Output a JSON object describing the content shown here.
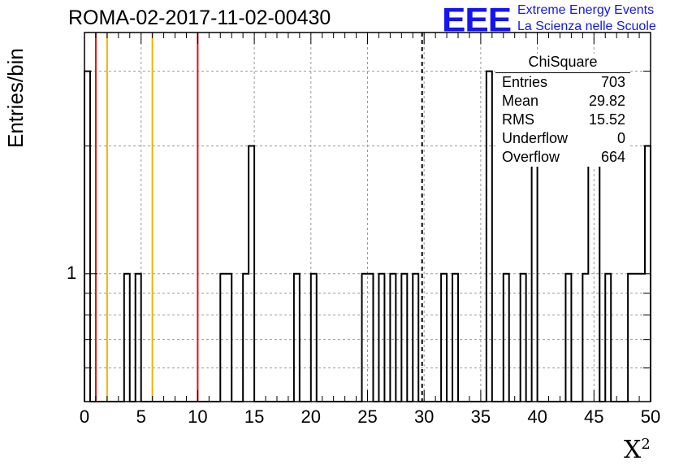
{
  "header": {
    "run_title": "ROMA-02-2017-11-02-00430",
    "logo_text": "EEE",
    "logo_line1": "Extreme Energy Events",
    "logo_line2": "La Scienza nelle Scuole"
  },
  "stats_box": {
    "title": "ChiSquare",
    "rows": [
      {
        "label": "Entries",
        "value": "703"
      },
      {
        "label": "Mean",
        "value": "29.82"
      },
      {
        "label": "RMS",
        "value": "15.52"
      },
      {
        "label": "Underflow",
        "value": "0"
      },
      {
        "label": "Overflow",
        "value": "664"
      }
    ]
  },
  "chart_data": {
    "type": "bar",
    "style": "step-histogram",
    "xlabel": "X",
    "xlabel_sup": "2",
    "ylabel": "Entries/bin",
    "xlim": [
      0,
      50
    ],
    "ylog": true,
    "ylim": [
      0.5,
      3.7
    ],
    "bin_width": 0.5,
    "bins": [
      {
        "x": 0.0,
        "y": 3
      },
      {
        "x": 3.5,
        "y": 1
      },
      {
        "x": 4.5,
        "y": 1
      },
      {
        "x": 12.0,
        "y": 1
      },
      {
        "x": 12.5,
        "y": 1
      },
      {
        "x": 14.0,
        "y": 1
      },
      {
        "x": 14.5,
        "y": 2
      },
      {
        "x": 18.5,
        "y": 1
      },
      {
        "x": 20.0,
        "y": 1
      },
      {
        "x": 24.5,
        "y": 1
      },
      {
        "x": 25.0,
        "y": 1
      },
      {
        "x": 26.0,
        "y": 1
      },
      {
        "x": 27.0,
        "y": 1
      },
      {
        "x": 28.0,
        "y": 1
      },
      {
        "x": 29.0,
        "y": 1
      },
      {
        "x": 31.5,
        "y": 1
      },
      {
        "x": 32.5,
        "y": 1
      },
      {
        "x": 35.5,
        "y": 3
      },
      {
        "x": 37.0,
        "y": 1
      },
      {
        "x": 38.5,
        "y": 1
      },
      {
        "x": 39.5,
        "y": 2
      },
      {
        "x": 42.5,
        "y": 1
      },
      {
        "x": 44.0,
        "y": 1
      },
      {
        "x": 44.5,
        "y": 2
      },
      {
        "x": 45.0,
        "y": 2
      },
      {
        "x": 46.0,
        "y": 1
      },
      {
        "x": 48.0,
        "y": 1
      },
      {
        "x": 48.5,
        "y": 1
      },
      {
        "x": 49.0,
        "y": 1
      },
      {
        "x": 49.5,
        "y": 2
      }
    ],
    "x_ticks": [
      0,
      5,
      10,
      15,
      20,
      25,
      30,
      35,
      40,
      45,
      50
    ],
    "y_ticks": [
      {
        "value": 1,
        "label": "1"
      }
    ],
    "grid": true,
    "reference_lines": [
      {
        "x": 1,
        "color": "#e01010",
        "style": "solid"
      },
      {
        "x": 2,
        "color": "#f0b400",
        "style": "solid"
      },
      {
        "x": 6,
        "color": "#f0b400",
        "style": "solid"
      },
      {
        "x": 10,
        "color": "#e01010",
        "style": "solid"
      },
      {
        "x": 29.82,
        "color": "#000000",
        "style": "dashed"
      }
    ]
  }
}
